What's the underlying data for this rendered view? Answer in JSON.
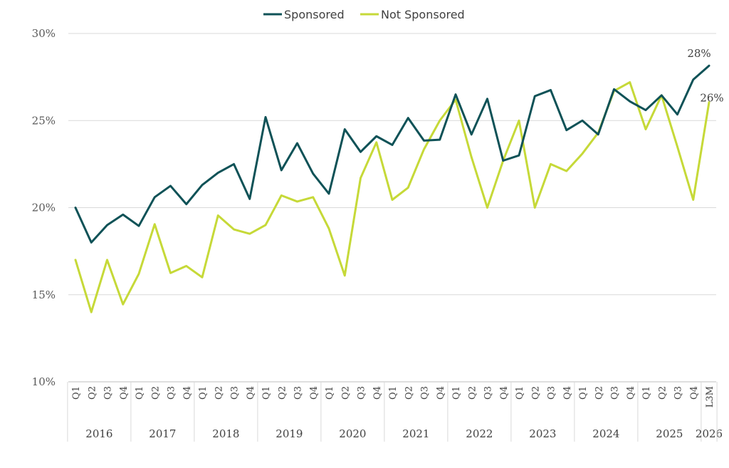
{
  "chart_data": {
    "type": "line",
    "title": "",
    "xlabel": "",
    "ylabel": "",
    "ylim": [
      10,
      30
    ],
    "yticks": [
      "10%",
      "15%",
      "20%",
      "25%",
      "30%"
    ],
    "ytick_values": [
      10,
      15,
      20,
      25,
      30
    ],
    "grid": true,
    "legend_position": "top-center",
    "categories": [
      "Q1",
      "Q2",
      "Q3",
      "Q4",
      "Q1",
      "Q2",
      "Q3",
      "Q4",
      "Q1",
      "Q2",
      "Q3",
      "Q4",
      "Q1",
      "Q2",
      "Q3",
      "Q4",
      "Q1",
      "Q2",
      "Q3",
      "Q4",
      "Q1",
      "Q2",
      "Q3",
      "Q4",
      "Q1",
      "Q2",
      "Q3",
      "Q4",
      "Q1",
      "Q2",
      "Q3",
      "Q4",
      "Q1",
      "Q2",
      "Q3",
      "Q4",
      "Q1",
      "Q2",
      "Q3",
      "Q4",
      "L3M"
    ],
    "year_groups": [
      {
        "label": "2016",
        "count": 4
      },
      {
        "label": "2017",
        "count": 4
      },
      {
        "label": "2018",
        "count": 4
      },
      {
        "label": "2019",
        "count": 4
      },
      {
        "label": "2020",
        "count": 4
      },
      {
        "label": "2021",
        "count": 4
      },
      {
        "label": "2022",
        "count": 4
      },
      {
        "label": "2023",
        "count": 4
      },
      {
        "label": "2024",
        "count": 4
      },
      {
        "label": "2025",
        "count": 4
      },
      {
        "label": "2026",
        "count": 1
      }
    ],
    "series": [
      {
        "name": "Sponsored",
        "color": "#0f5257",
        "values": [
          20.0,
          18.0,
          19.0,
          19.6,
          18.95,
          20.6,
          21.25,
          20.2,
          21.3,
          22.0,
          22.5,
          20.5,
          25.2,
          22.15,
          23.7,
          21.95,
          20.8,
          24.5,
          23.2,
          24.1,
          23.6,
          25.15,
          23.85,
          23.9,
          26.5,
          24.2,
          26.25,
          22.7,
          23.0,
          26.4,
          26.75,
          24.45,
          25.0,
          24.2,
          26.8,
          26.1,
          25.6,
          26.45,
          25.35,
          27.35,
          28.15
        ],
        "end_label": "28%"
      },
      {
        "name": "Not Sponsored",
        "color": "#c6d938",
        "values": [
          17.0,
          14.0,
          17.0,
          14.45,
          16.2,
          19.05,
          16.25,
          16.65,
          16.0,
          19.55,
          18.75,
          18.5,
          19.0,
          20.7,
          20.35,
          20.6,
          18.8,
          16.1,
          21.7,
          23.75,
          20.45,
          21.15,
          23.35,
          25.0,
          26.2,
          22.9,
          20.0,
          22.7,
          25.0,
          20.0,
          22.5,
          22.1,
          23.1,
          24.3,
          26.7,
          27.2,
          24.5,
          26.45,
          23.5,
          20.45,
          26.05
        ],
        "end_label": "26%"
      }
    ]
  }
}
